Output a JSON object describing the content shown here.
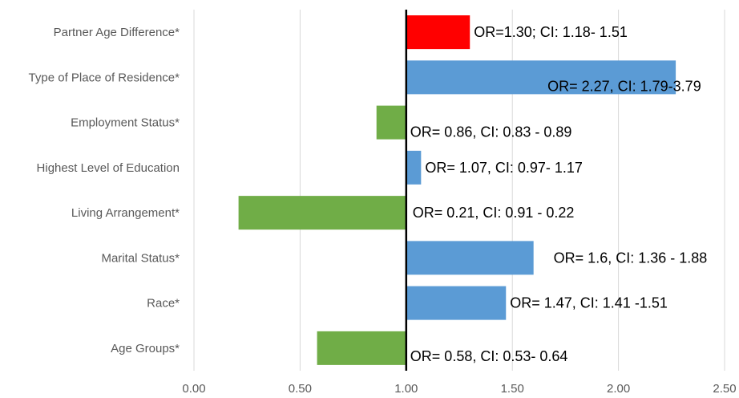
{
  "chart_data": {
    "type": "bar",
    "orientation": "horizontal",
    "baseline": 1.0,
    "xlim": [
      0,
      2.5
    ],
    "x_ticks": [
      "0.00",
      "0.50",
      "1.00",
      "1.50",
      "2.00",
      "2.50"
    ],
    "x_tick_values": [
      0,
      0.5,
      1.0,
      1.5,
      2.0,
      2.5
    ],
    "grid": "vertical",
    "categories": [
      "Partner Age Difference*",
      "Type of Place of Residence*",
      "Employment Status*",
      "Highest Level of Education",
      "Living Arrangement*",
      "Marital Status*",
      "Race*",
      "Age Groups*"
    ],
    "values": [
      1.3,
      2.27,
      0.86,
      1.07,
      0.21,
      1.6,
      1.47,
      0.58
    ],
    "labels": [
      "OR=1.30; CI: 1.18- 1.51",
      "OR= 2.27, CI: 1.79-3.79",
      "OR= 0.86, CI: 0.83 - 0.89",
      "OR= 1.07, CI: 0.97- 1.17",
      "OR= 0.21, CI: 0.91 - 0.22",
      "OR= 1.6, CI: 1.36 - 1.88",
      "OR= 1.47, CI: 1.41 -1.51",
      "OR= 0.58, CI: 0.53- 0.64"
    ],
    "colors": [
      "#ff0000",
      "#5b9bd5",
      "#70ad47",
      "#5b9bd5",
      "#70ad47",
      "#5b9bd5",
      "#5b9bd5",
      "#70ad47"
    ],
    "gridline_color": "#d9d9d9",
    "baseline_color": "#000000"
  }
}
